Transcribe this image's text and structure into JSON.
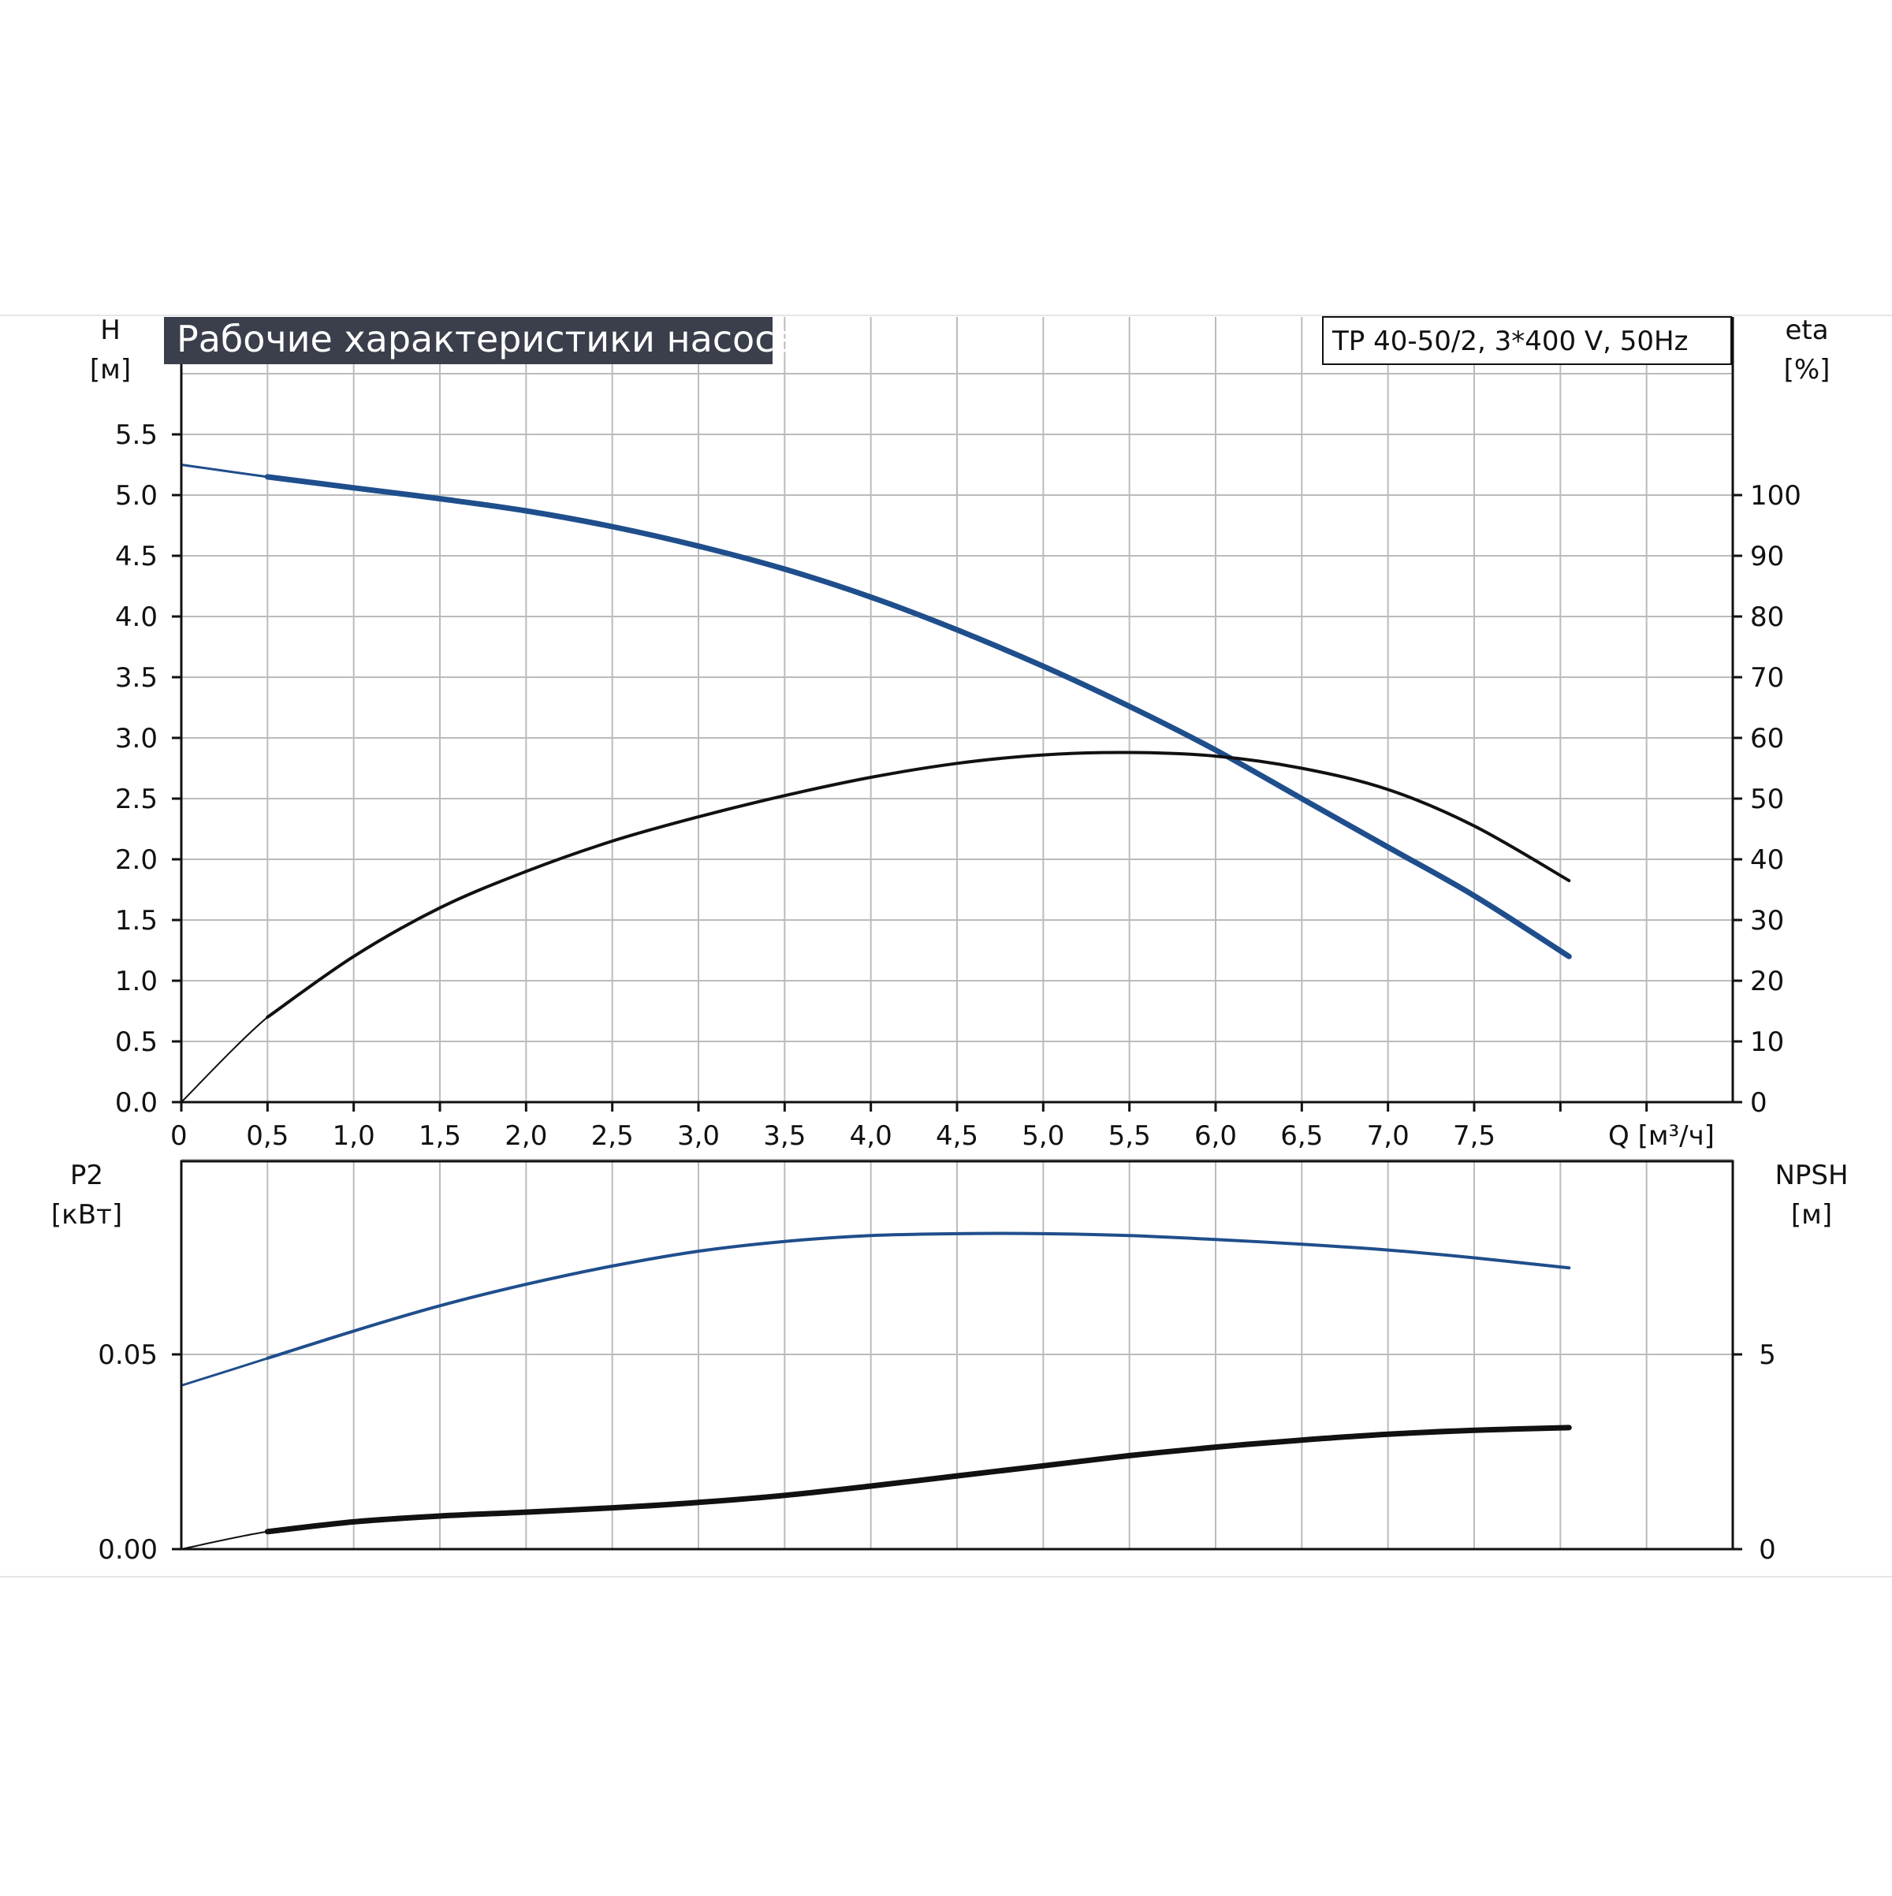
{
  "title": "Рабочие характеристики насоса",
  "model": "TP 40-50/2, 3*400 V, 50Hz",
  "colors": {
    "blue": "#1f4e8c",
    "black": "#111111",
    "grid": "#bbbbbb",
    "title_bg": "#3a3f4b"
  },
  "chart_data": [
    {
      "type": "line",
      "name": "top",
      "left_axis": {
        "label": "H",
        "unit": "[м]",
        "range": [
          0,
          6
        ],
        "ticks": [
          "0.0",
          "0.5",
          "1.0",
          "1.5",
          "2.0",
          "2.5",
          "3.0",
          "3.5",
          "4.0",
          "4.5",
          "5.0",
          "5.5"
        ]
      },
      "right_axis": {
        "label": "eta",
        "unit": "[%]",
        "range": [
          0,
          120
        ],
        "ticks": [
          "0",
          "10",
          "20",
          "30",
          "40",
          "50",
          "60",
          "70",
          "80",
          "90",
          "100"
        ]
      },
      "x_axis": {
        "label": "Q [м³/ч]",
        "range": [
          0,
          9
        ],
        "ticks": [
          "0",
          "0,5",
          "1,0",
          "1,5",
          "2,0",
          "2,5",
          "3,0",
          "3,5",
          "4,0",
          "4,5",
          "5,0",
          "5,5",
          "6,0",
          "6,5",
          "7,0",
          "7,5"
        ]
      },
      "grid": true,
      "series": [
        {
          "axis": "left",
          "x": [
            0,
            0.5,
            1.0,
            1.5,
            2.0,
            2.5,
            3.0,
            3.5,
            4.0,
            4.5,
            5.0,
            5.5,
            6.0,
            6.5,
            7.0,
            7.5,
            8.05
          ],
          "y": [
            5.25,
            5.15,
            5.06,
            4.97,
            4.87,
            4.74,
            4.58,
            4.39,
            4.16,
            3.89,
            3.59,
            3.26,
            2.9,
            2.5,
            2.1,
            1.7,
            1.2
          ]
        },
        {
          "axis": "right",
          "x": [
            0,
            0.5,
            1.0,
            1.5,
            2.0,
            2.5,
            3.0,
            3.5,
            4.0,
            4.5,
            5.0,
            5.5,
            6.0,
            6.5,
            7.0,
            7.5,
            8.05
          ],
          "y": [
            0,
            14,
            24,
            32,
            38,
            43,
            47,
            50.5,
            53.5,
            55.8,
            57.2,
            57.6,
            57,
            55,
            51.5,
            45.5,
            36.5
          ]
        }
      ]
    },
    {
      "type": "line",
      "name": "bottom",
      "left_axis": {
        "label": "P2",
        "unit": "[кВт]",
        "range": [
          0,
          0.1
        ],
        "ticks": [
          "0.00",
          "0.05"
        ]
      },
      "right_axis": {
        "label": "NPSH",
        "unit": "[м]",
        "range": [
          0,
          10
        ],
        "ticks": [
          "0",
          "5"
        ]
      },
      "x_axis": {
        "range": [
          0,
          9
        ]
      },
      "grid": true,
      "series": [
        {
          "axis": "left",
          "x": [
            0,
            0.5,
            1.0,
            1.5,
            2.0,
            2.5,
            3.0,
            3.5,
            4.0,
            4.5,
            5.0,
            5.5,
            6.0,
            6.5,
            7.0,
            7.5,
            8.05
          ],
          "y": [
            0.042,
            0.049,
            0.056,
            0.0625,
            0.068,
            0.0727,
            0.0765,
            0.079,
            0.0805,
            0.081,
            0.081,
            0.0805,
            0.0795,
            0.0783,
            0.0768,
            0.0748,
            0.0722
          ]
        },
        {
          "axis": "right",
          "x": [
            0,
            0.5,
            1.0,
            1.5,
            2.0,
            2.5,
            3.0,
            3.5,
            4.0,
            4.5,
            5.0,
            5.5,
            6.0,
            6.5,
            7.0,
            7.5,
            8.05
          ],
          "y": [
            0,
            0.45,
            0.7,
            0.85,
            0.95,
            1.06,
            1.2,
            1.38,
            1.62,
            1.88,
            2.14,
            2.4,
            2.62,
            2.8,
            2.95,
            3.05,
            3.12
          ]
        }
      ]
    }
  ]
}
